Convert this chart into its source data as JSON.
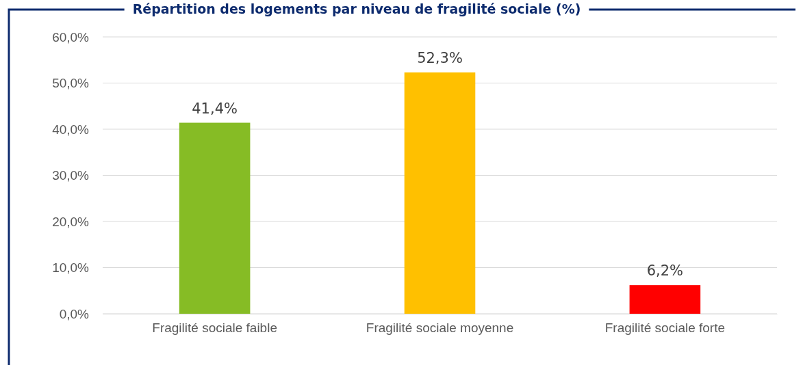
{
  "chart_data": {
    "type": "bar",
    "title": "Répartition des logements par niveau de fragilité sociale (%)",
    "categories": [
      "Fragilité sociale faible",
      "Fragilité sociale moyenne",
      "Fragilité sociale forte"
    ],
    "values": [
      41.4,
      52.3,
      6.2
    ],
    "colors": [
      "#86bc25",
      "#ffc000",
      "#ff0000"
    ],
    "value_labels": [
      "41,4%",
      "52,3%",
      "6,2%"
    ],
    "ylim": [
      0,
      60
    ],
    "yticks": [
      {
        "value": 0,
        "label": "0,0%"
      },
      {
        "value": 10,
        "label": "10,0%"
      },
      {
        "value": 20,
        "label": "20,0%"
      },
      {
        "value": 30,
        "label": "30,0%"
      },
      {
        "value": 40,
        "label": "40,0%"
      },
      {
        "value": 50,
        "label": "50,0%"
      },
      {
        "value": 60,
        "label": "60,0%"
      }
    ],
    "grid": "y"
  }
}
